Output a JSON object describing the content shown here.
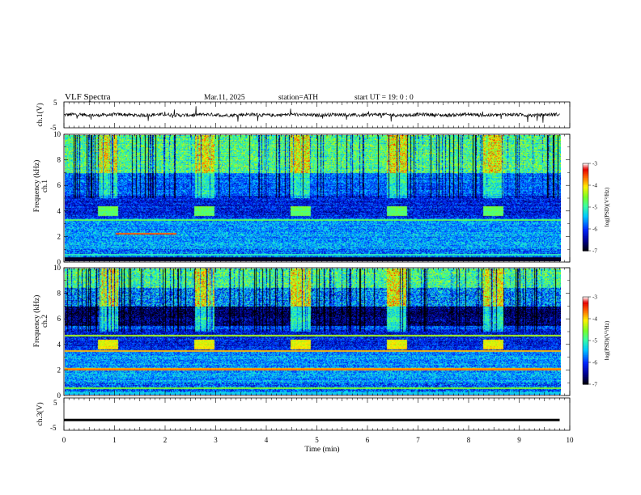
{
  "header": {
    "title": "VLF  Spectra",
    "date": "Mar.11, 2025",
    "station": "station=ATH",
    "start": "start  UT  =   19: 0  : 0"
  },
  "colorbar": {
    "label": "log(PSD)(V²/Hz)",
    "ticks": [
      "-3",
      "-4",
      "-5",
      "-6",
      "-7"
    ]
  },
  "chart_data": [
    {
      "type": "line",
      "panel": "ch1-waveform",
      "ylabel": "ch.1(V)",
      "ylim": [
        -5,
        5
      ],
      "yticks": [
        "5",
        "-5"
      ],
      "x": [
        0,
        9.8
      ],
      "description_values": "noisy waveform oscillating around 0 V, amplitude about ±1 V with occasional spikes",
      "color": "#000000"
    },
    {
      "type": "heatmap",
      "panel": "ch1-spectrogram",
      "ylabel": "ch.1 Frequency (kHz)",
      "ylim": [
        0,
        10
      ],
      "yticks": [
        "0",
        "2",
        "4",
        "6",
        "8",
        "10"
      ],
      "xlim": [
        0,
        9.8
      ],
      "bright_blocks_min": [
        [
          0.65,
          1.05
        ],
        [
          2.55,
          2.95
        ],
        [
          4.45,
          4.85
        ],
        [
          6.35,
          6.75
        ],
        [
          8.25,
          8.65
        ]
      ],
      "bright_block_freq_khz": [
        3.6,
        4.4
      ],
      "colorbar_range": [
        -7,
        -3
      ]
    },
    {
      "type": "heatmap",
      "panel": "ch2-spectrogram",
      "ylabel": "ch.2 Frequency (kHz)",
      "ylim": [
        0,
        10
      ],
      "yticks": [
        "0",
        "2",
        "4",
        "6",
        "8",
        "10"
      ],
      "xlim": [
        0,
        9.8
      ],
      "bright_blocks_min": [
        [
          0.65,
          1.05
        ],
        [
          2.55,
          2.95
        ],
        [
          4.45,
          4.85
        ],
        [
          6.35,
          6.75
        ],
        [
          8.25,
          8.65
        ]
      ],
      "bright_block_freq_khz": [
        3.6,
        4.4
      ],
      "colorbar_range": [
        -7,
        -3
      ]
    },
    {
      "type": "line",
      "panel": "ch3-waveform",
      "ylabel": "ch.3(V)",
      "ylim": [
        -5,
        5
      ],
      "yticks": [
        "5",
        "-5"
      ],
      "x": [
        0,
        9.8
      ],
      "value_constant": -1.8,
      "color": "#000000"
    }
  ],
  "xaxis": {
    "label": "Time  (min)",
    "ticks": [
      "0",
      "1",
      "2",
      "3",
      "4",
      "5",
      "6",
      "7",
      "8",
      "9",
      "10"
    ],
    "xlim": [
      0,
      10
    ]
  }
}
